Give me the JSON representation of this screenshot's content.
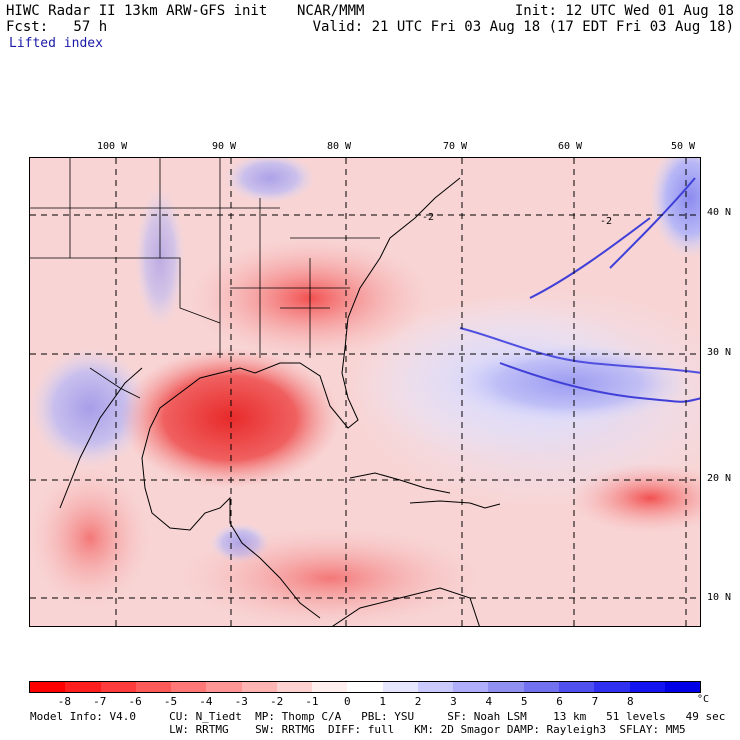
{
  "header": {
    "model_title": "HIWC Radar II 13km ARW-GFS init",
    "org": "NCAR/MMM",
    "init": "Init: 12 UTC Wed 01 Aug 18",
    "fcst": "Fcst:   57 h",
    "valid": "Valid: 21 UTC Fri 03 Aug 18 (17 EDT Fri 03 Aug 18)",
    "field": "Lifted index"
  },
  "map": {
    "lon_labels": [
      "100 W",
      "90 W",
      "80 W",
      "70 W",
      "60 W",
      "50 W"
    ],
    "lat_labels": [
      "40 N",
      "30 N",
      "20 N",
      "10 N"
    ],
    "contour_labels": [
      "-2",
      "-2"
    ]
  },
  "colorbar": {
    "labels": [
      "-8",
      "-7",
      "-6",
      "-5",
      "-4",
      "-3",
      "-2",
      "-1",
      "0",
      "1",
      "2",
      "3",
      "4",
      "5",
      "6",
      "7",
      "8"
    ],
    "unit": "°C",
    "colors": [
      "#ff0000",
      "#ff1e1e",
      "#ff3c3c",
      "#ff5a5a",
      "#ff7878",
      "#ff9696",
      "#ffb4b4",
      "#ffd2d2",
      "#ffefef",
      "#ffffff",
      "#e6e6ff",
      "#cacaff",
      "#aeaefa",
      "#9090f0",
      "#7272f0",
      "#5050f0",
      "#3030f0",
      "#1414f0",
      "#0000e6"
    ]
  },
  "footer": {
    "line1": "Model Info: V4.0     CU: N_Tiedt  MP: Thomp C/A   PBL: YSU     SF: Noah LSM    13 km   51 levels   49 sec",
    "line2": "                     LW: RRTMG    SW: RRTMG  DIFF: full   KM: 2D Smagor DAMP: Rayleigh3  SFLAY: MM5"
  }
}
